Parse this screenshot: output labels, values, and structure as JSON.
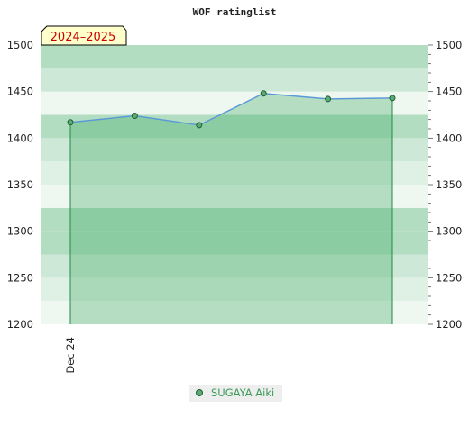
{
  "chart_data": {
    "type": "line",
    "title": "WOF ratinglist",
    "season_label": "2024–2025",
    "xlabel": "",
    "ylabel": "",
    "ylim": [
      1200,
      1500
    ],
    "y_ticks": [
      1200,
      1250,
      1300,
      1350,
      1400,
      1450,
      1500
    ],
    "x_tick_labels": [
      "Dec 24"
    ],
    "series": [
      {
        "name": "SUGAYA Aiki",
        "values": [
          1417,
          1424,
          1414,
          1448,
          1442,
          1443
        ]
      }
    ],
    "legend_position": "bottom",
    "grid": false,
    "colors": {
      "band_dark": "#7cc496",
      "band_mid": "#b3ddc1",
      "band_light": "#cde8d6",
      "band_pale": "#dff0e4",
      "band_white": "#eef7f0",
      "area_fill": "#3aa860",
      "line": "#5b9bd5",
      "marker": "#5cab72",
      "marker_stroke": "#1e5e34",
      "edge": "#1f8a45",
      "legend_text": "#3a9a5a",
      "legend_bg": "#eeeeee",
      "season_box_bg": "#ffffcc",
      "season_box_text": "#cc0000"
    }
  }
}
